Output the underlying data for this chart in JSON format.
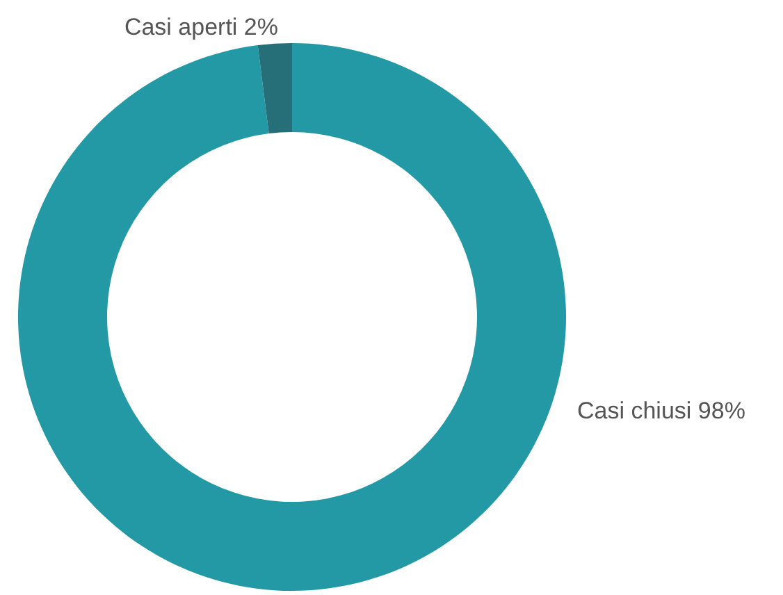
{
  "chart_data": {
    "type": "donut",
    "categories": [
      "Casi chiusi",
      "Casi aperti"
    ],
    "values": [
      98,
      2
    ],
    "colors": [
      "#2399a6",
      "#266f78"
    ],
    "value_labels": [
      "98%",
      "2%"
    ]
  }
}
